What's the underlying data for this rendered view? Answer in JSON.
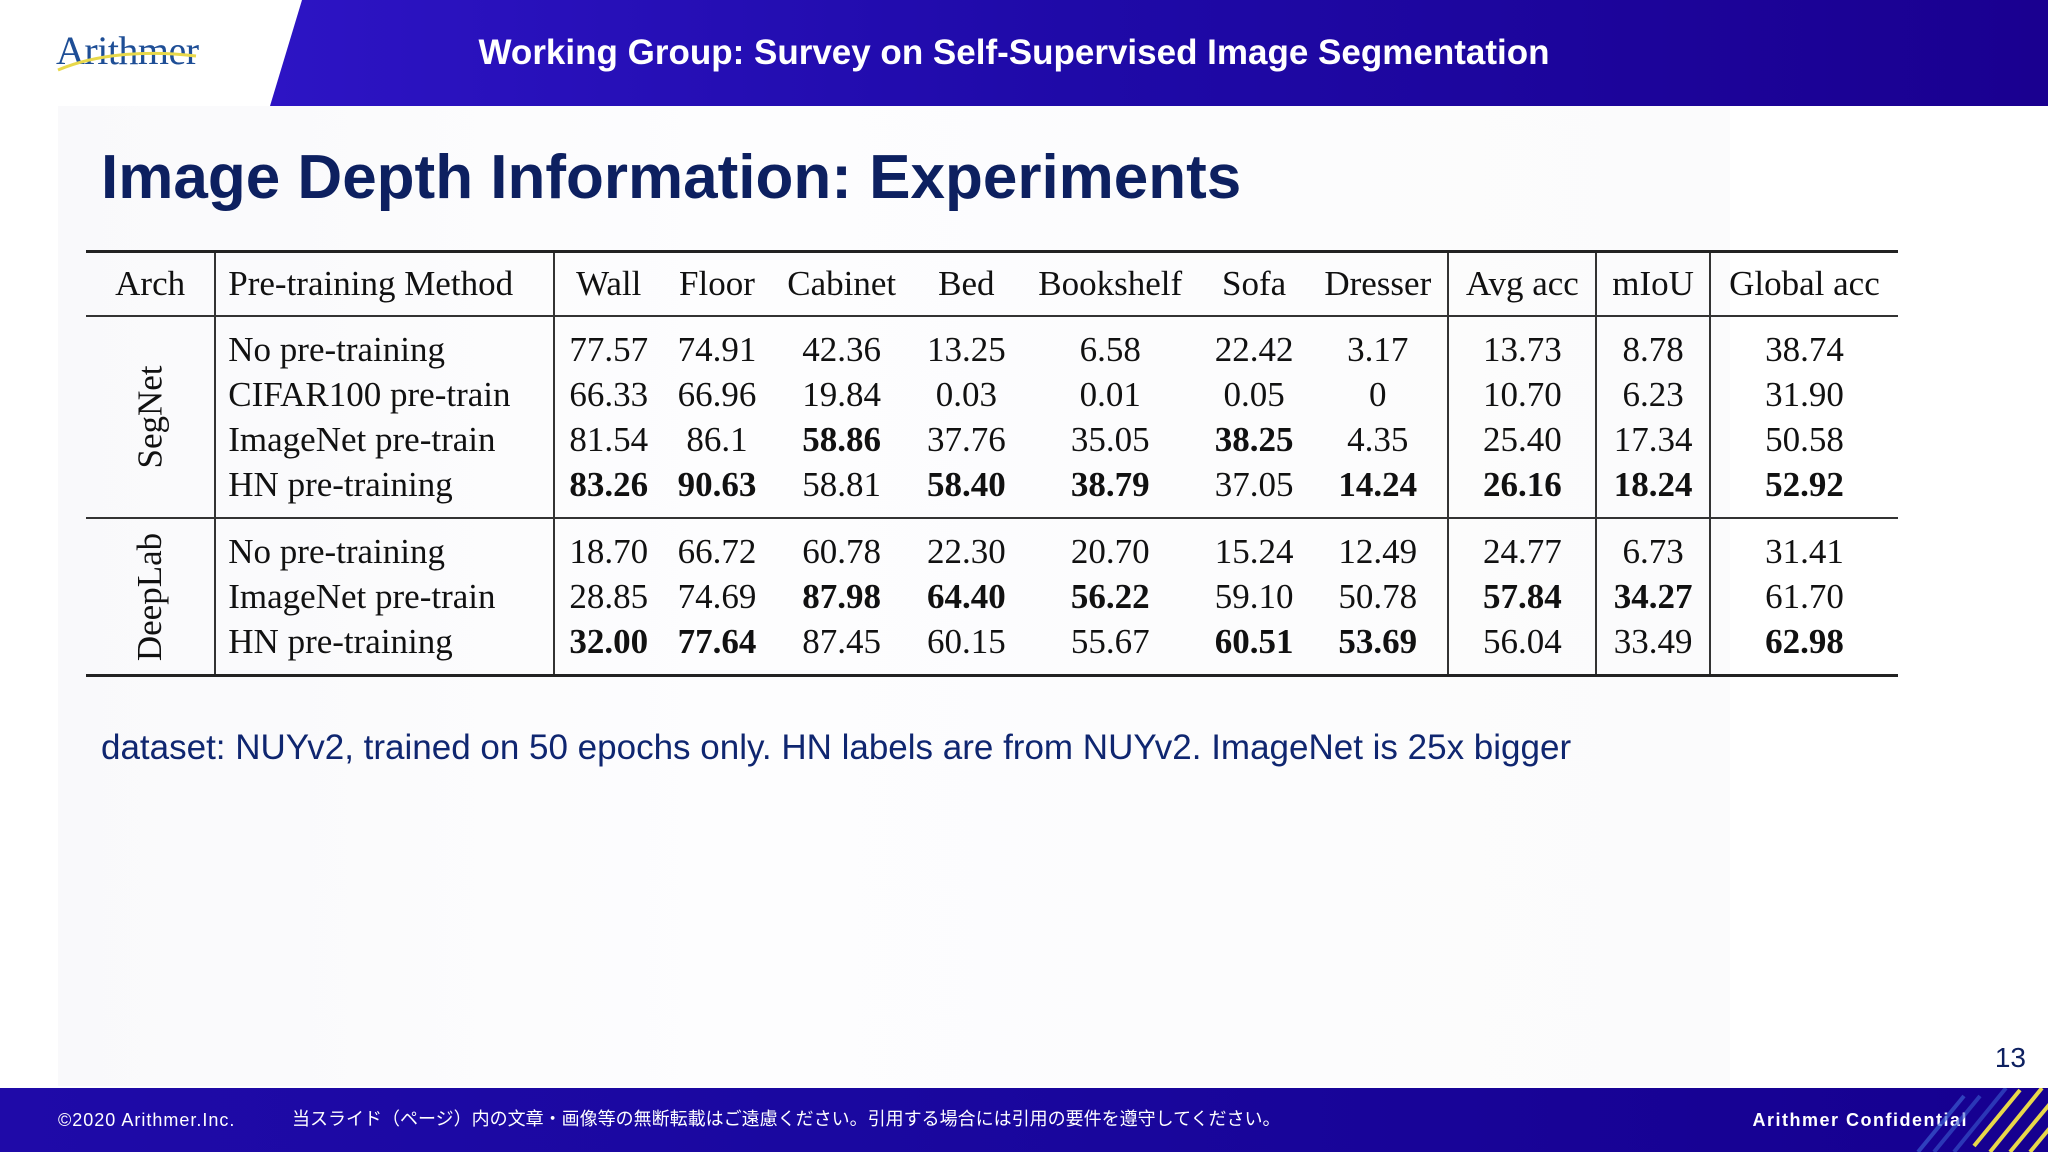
{
  "header": {
    "logo_text": "Arithmer",
    "title": "Working Group: Survey on Self-Supervised Image Segmentation",
    "colors": {
      "band_start": "#2d14c4",
      "band_end": "#1a0090",
      "logo": "#1e4e96",
      "logo_swoosh": "#e8d84a"
    }
  },
  "page": {
    "title": "Image Depth Information: Experiments",
    "caption": "dataset: NUYv2, trained on 50 epochs only. HN labels are from NUYv2. ImageNet is 25x bigger",
    "number": "13",
    "title_color": "#0d2060"
  },
  "table": {
    "headers": [
      "Arch",
      "Pre-training Method",
      "Wall",
      "Floor",
      "Cabinet",
      "Bed",
      "Bookshelf",
      "Sofa",
      "Dresser",
      "Avg acc",
      "mIoU",
      "Global acc"
    ],
    "groups": [
      {
        "arch": "SegNet",
        "rows": [
          {
            "method": "No pre-training",
            "values": [
              "77.57",
              "74.91",
              "42.36",
              "13.25",
              "6.58",
              "22.42",
              "3.17",
              "13.73",
              "8.78",
              "38.74"
            ],
            "bold": []
          },
          {
            "method": "CIFAR100 pre-train",
            "values": [
              "66.33",
              "66.96",
              "19.84",
              "0.03",
              "0.01",
              "0.05",
              "0",
              "10.70",
              "6.23",
              "31.90"
            ],
            "bold": []
          },
          {
            "method": "ImageNet pre-train",
            "values": [
              "81.54",
              "86.1",
              "58.86",
              "37.76",
              "35.05",
              "38.25",
              "4.35",
              "25.40",
              "17.34",
              "50.58"
            ],
            "bold": [
              2,
              5
            ]
          },
          {
            "method": "HN pre-training",
            "values": [
              "83.26",
              "90.63",
              "58.81",
              "58.40",
              "38.79",
              "37.05",
              "14.24",
              "26.16",
              "18.24",
              "52.92"
            ],
            "bold": [
              0,
              1,
              3,
              4,
              6,
              7,
              8,
              9
            ]
          }
        ]
      },
      {
        "arch": "DeepLab",
        "rows": [
          {
            "method": "No pre-training",
            "values": [
              "18.70",
              "66.72",
              "60.78",
              "22.30",
              "20.70",
              "15.24",
              "12.49",
              "24.77",
              "6.73",
              "31.41"
            ],
            "bold": []
          },
          {
            "method": "ImageNet pre-train",
            "values": [
              "28.85",
              "74.69",
              "87.98",
              "64.40",
              "56.22",
              "59.10",
              "50.78",
              "57.84",
              "34.27",
              "61.70"
            ],
            "bold": [
              2,
              3,
              4,
              7,
              8
            ]
          },
          {
            "method": "HN pre-training",
            "values": [
              "32.00",
              "77.64",
              "87.45",
              "60.15",
              "55.67",
              "60.51",
              "53.69",
              "56.04",
              "33.49",
              "62.98"
            ],
            "bold": [
              0,
              1,
              5,
              6,
              9
            ]
          }
        ]
      }
    ]
  },
  "footer": {
    "copyright": "©2020 Arithmer.Inc.",
    "notice": "当スライド（ページ）内の文章・画像等の無断転載はご遠慮ください。引用する場合には引用の要件を遵守してください。",
    "confidential": "Arithmer Confidential",
    "colors": {
      "band": "#1a08a0",
      "stripe_yellow": "#e8d84a",
      "stripe_blue": "#3a5cd0"
    }
  }
}
